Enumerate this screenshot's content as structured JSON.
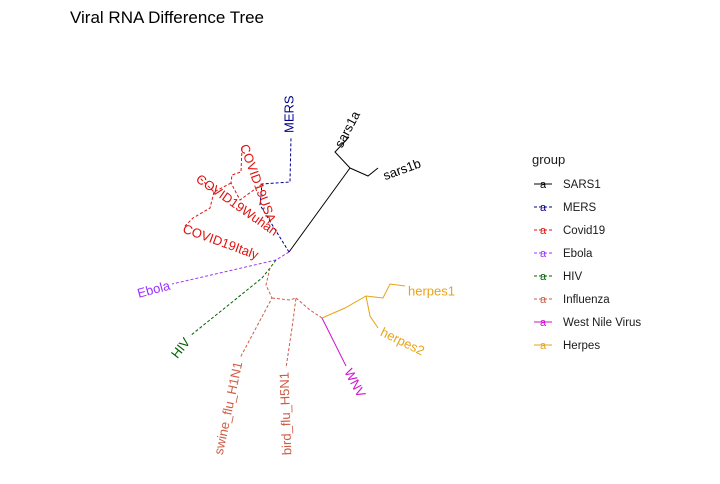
{
  "title": "Viral RNA Difference Tree",
  "legend": {
    "title": "group",
    "key_glyph": "a",
    "items": [
      {
        "label": "SARS1",
        "color": "#000000",
        "dashed": false
      },
      {
        "label": "MERS",
        "color": "#00008B",
        "dashed": true
      },
      {
        "label": "Covid19",
        "color": "#E0120F",
        "dashed": true
      },
      {
        "label": "Ebola",
        "color": "#9B30FF",
        "dashed": true
      },
      {
        "label": "HIV",
        "color": "#006400",
        "dashed": true
      },
      {
        "label": "Influenza",
        "color": "#CD5C45",
        "dashed": true
      },
      {
        "label": "West Nile Virus",
        "color": "#D010D0",
        "dashed": false
      },
      {
        "label": "Herpes",
        "color": "#E8A317",
        "dashed": false
      }
    ]
  },
  "tips": [
    {
      "label": "sars1a",
      "group": "SARS1"
    },
    {
      "label": "sars1b",
      "group": "SARS1"
    },
    {
      "label": "MERS",
      "group": "MERS"
    },
    {
      "label": "COVID19USA",
      "group": "Covid19"
    },
    {
      "label": "COVID19Wuhan",
      "group": "Covid19"
    },
    {
      "label": "COVID19Italy",
      "group": "Covid19"
    },
    {
      "label": "Ebola",
      "group": "Ebola"
    },
    {
      "label": "HIV",
      "group": "HIV"
    },
    {
      "label": "swine_flu_H1N1",
      "group": "Influenza"
    },
    {
      "label": "bird_flu_H5N1",
      "group": "Influenza"
    },
    {
      "label": "WNV",
      "group": "West Nile Virus"
    },
    {
      "label": "herpes1",
      "group": "Herpes"
    },
    {
      "label": "herpes2",
      "group": "Herpes"
    }
  ]
}
